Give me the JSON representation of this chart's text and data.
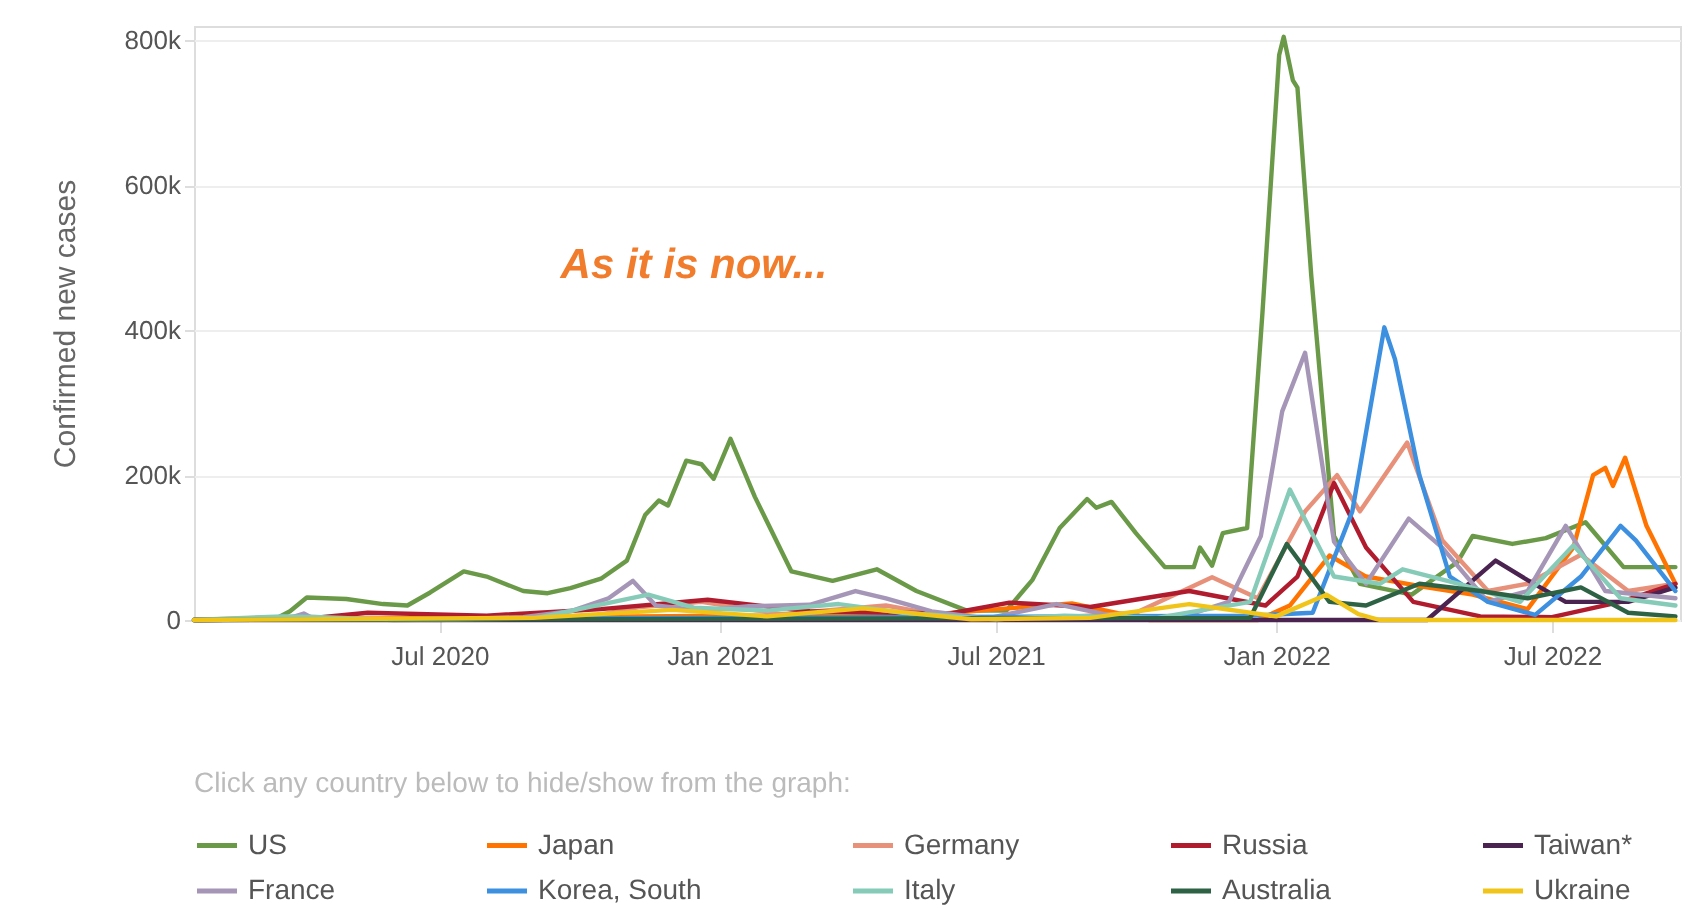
{
  "chart_data": {
    "type": "line",
    "ylabel": "Confirmed new cases",
    "legend_title": "Click any country below to hide/show from the graph:",
    "annotations": [
      "As it is now..."
    ],
    "xlim": [
      "2020-01-22",
      "2022-09-23"
    ],
    "xticks": [
      {
        "value": "2020-07-01",
        "label": "Jul 2020"
      },
      {
        "value": "2021-01-01",
        "label": "Jan 2021"
      },
      {
        "value": "2021-07-01",
        "label": "Jul 2021"
      },
      {
        "value": "2022-01-01",
        "label": "Jan 2022"
      },
      {
        "value": "2022-07-01",
        "label": "Jul 2022"
      }
    ],
    "ylim": [
      0,
      820000
    ],
    "yticks": [
      0,
      {
        "value": 200000,
        "label": "200k"
      },
      {
        "value": 400000,
        "label": "400k"
      },
      {
        "value": 600000,
        "label": "600k"
      },
      {
        "value": 800000,
        "label": "800k"
      }
    ],
    "grid": "y",
    "legend": "bottom",
    "series": [
      {
        "name": "US",
        "color": "#6a9a48",
        "x": [
          "2020-01-22",
          "2020-03-15",
          "2020-03-25",
          "2020-04-05",
          "2020-05-01",
          "2020-05-25",
          "2020-06-10",
          "2020-06-25",
          "2020-07-17",
          "2020-08-01",
          "2020-08-25",
          "2020-09-10",
          "2020-09-25",
          "2020-10-15",
          "2020-11-01",
          "2020-11-13",
          "2020-11-22",
          "2020-11-28",
          "2020-12-10",
          "2020-12-20",
          "2020-12-28",
          "2021-01-08",
          "2021-01-24",
          "2021-02-17",
          "2021-03-16",
          "2021-04-14",
          "2021-05-10",
          "2021-06-12",
          "2021-07-08",
          "2021-07-25",
          "2021-08-12",
          "2021-08-30",
          "2021-09-05",
          "2021-09-15",
          "2021-10-01",
          "2021-10-20",
          "2021-11-08",
          "2021-11-12",
          "2021-11-20",
          "2021-11-27",
          "2021-12-13",
          "2021-12-23",
          "2022-01-03",
          "2022-01-06",
          "2022-01-12",
          "2022-01-15",
          "2022-01-24",
          "2022-02-08",
          "2022-02-25",
          "2022-03-31",
          "2022-04-30",
          "2022-05-10",
          "2022-06-05",
          "2022-06-27",
          "2022-07-23",
          "2022-08-17",
          "2022-09-20"
        ],
        "values": [
          0,
          1000,
          12000,
          31000,
          29000,
          22000,
          20000,
          38000,
          67000,
          60000,
          40000,
          37000,
          44000,
          57000,
          82000,
          145000,
          165000,
          158000,
          220000,
          215000,
          195000,
          250000,
          170000,
          67000,
          54000,
          70000,
          40000,
          13000,
          13000,
          55000,
          127000,
          167000,
          155000,
          163000,
          120000,
          73000,
          73000,
          100000,
          75000,
          120000,
          127000,
          423000,
          780000,
          805000,
          745000,
          735000,
          477000,
          116000,
          50000,
          35000,
          80000,
          116000,
          105000,
          113000,
          135000,
          73000,
          73000
        ]
      },
      {
        "name": "Japan",
        "color": "#ff7300",
        "x": [
          "2020-01-22",
          "2021-01-10",
          "2021-05-10",
          "2021-08-20",
          "2021-10-10",
          "2021-12-20",
          "2022-01-10",
          "2022-02-05",
          "2022-03-01",
          "2022-04-10",
          "2022-05-10",
          "2022-06-15",
          "2022-07-15",
          "2022-07-28",
          "2022-08-05",
          "2022-08-10",
          "2022-08-18",
          "2022-09-01",
          "2022-09-20"
        ],
        "values": [
          0,
          6000,
          6000,
          23000,
          0,
          0,
          20000,
          89000,
          60000,
          45000,
          35000,
          15000,
          100000,
          200000,
          210000,
          185000,
          224000,
          130000,
          50000
        ]
      },
      {
        "name": "Germany",
        "color": "#e8917a",
        "x": [
          "2020-01-22",
          "2020-04-01",
          "2020-06-01",
          "2020-10-01",
          "2020-11-10",
          "2020-12-20",
          "2021-02-10",
          "2021-04-20",
          "2021-06-01",
          "2021-08-01",
          "2021-10-01",
          "2021-11-20",
          "2021-12-20",
          "2022-01-20",
          "2022-02-10",
          "2022-02-25",
          "2022-03-28",
          "2022-04-20",
          "2022-05-20",
          "2022-06-15",
          "2022-07-20",
          "2022-08-20",
          "2022-09-20"
        ],
        "values": [
          0,
          5000,
          0,
          2000,
          18000,
          25000,
          8000,
          20000,
          4000,
          2000,
          10000,
          59000,
          30000,
          150000,
          200000,
          150000,
          245000,
          110000,
          40000,
          50000,
          90000,
          40000,
          50000
        ]
      },
      {
        "name": "Russia",
        "color": "#b01c2e",
        "x": [
          "2020-01-22",
          "2020-04-01",
          "2020-05-15",
          "2020-08-01",
          "2020-10-15",
          "2020-12-24",
          "2021-03-01",
          "2021-06-01",
          "2021-07-10",
          "2021-09-01",
          "2021-11-05",
          "2021-12-25",
          "2022-01-15",
          "2022-02-08",
          "2022-03-01",
          "2022-04-01",
          "2022-05-15",
          "2022-07-01",
          "2022-08-15",
          "2022-09-20"
        ],
        "values": [
          0,
          1000,
          10000,
          6000,
          15000,
          28000,
          12000,
          9000,
          24000,
          18000,
          40000,
          20000,
          60000,
          189000,
          100000,
          25000,
          5000,
          4000,
          25000,
          50000
        ]
      },
      {
        "name": "Taiwan*",
        "color": "#4b2350",
        "x": [
          "2020-01-22",
          "2022-04-10",
          "2022-05-25",
          "2022-06-15",
          "2022-07-10",
          "2022-08-20",
          "2022-09-20"
        ],
        "values": [
          0,
          0,
          82000,
          55000,
          25000,
          25000,
          45000
        ]
      },
      {
        "name": "France",
        "color": "#a596b8",
        "x": [
          "2020-01-22",
          "2020-03-25",
          "2020-04-03",
          "2020-04-10",
          "2020-07-01",
          "2020-08-25",
          "2020-09-25",
          "2020-10-20",
          "2020-11-05",
          "2020-11-20",
          "2020-12-20",
          "2021-01-20",
          "2021-03-01",
          "2021-03-31",
          "2021-04-20",
          "2021-05-20",
          "2021-06-25",
          "2021-08-10",
          "2021-09-15",
          "2021-11-01",
          "2021-12-01",
          "2021-12-22",
          "2022-01-05",
          "2022-01-20",
          "2022-02-08",
          "2022-03-01",
          "2022-03-29",
          "2022-04-20",
          "2022-05-20",
          "2022-06-15",
          "2022-07-10",
          "2022-08-05",
          "2022-09-20"
        ],
        "values": [
          0,
          3000,
          9000,
          1000,
          0,
          4000,
          12000,
          30000,
          54000,
          20000,
          13000,
          19000,
          21000,
          40000,
          30000,
          12000,
          2000,
          22000,
          6000,
          5000,
          25000,
          116000,
          288000,
          369000,
          108000,
          50000,
          140000,
          100000,
          25000,
          40000,
          130000,
          40000,
          30000
        ]
      },
      {
        "name": "Korea, South",
        "color": "#3d8fe0",
        "x": [
          "2020-01-22",
          "2021-12-15",
          "2022-01-25",
          "2022-02-20",
          "2022-03-13",
          "2022-03-20",
          "2022-04-05",
          "2022-04-25",
          "2022-05-20",
          "2022-06-20",
          "2022-07-20",
          "2022-08-15",
          "2022-08-25",
          "2022-09-20"
        ],
        "values": [
          0,
          6000,
          10000,
          150000,
          404000,
          360000,
          200000,
          60000,
          25000,
          7000,
          60000,
          130000,
          110000,
          40000
        ]
      },
      {
        "name": "Italy",
        "color": "#86cbb8",
        "x": [
          "2020-01-22",
          "2020-03-20",
          "2020-04-15",
          "2020-06-01",
          "2020-09-01",
          "2020-11-15",
          "2020-12-15",
          "2021-02-01",
          "2021-03-20",
          "2021-05-01",
          "2021-07-01",
          "2021-08-15",
          "2021-10-15",
          "2021-12-15",
          "2022-01-10",
          "2022-02-08",
          "2022-03-10",
          "2022-03-25",
          "2022-05-01",
          "2022-06-10",
          "2022-07-15",
          "2022-08-15",
          "2022-09-20"
        ],
        "values": [
          0,
          5000,
          4000,
          0,
          2000,
          35000,
          17000,
          13000,
          22000,
          10000,
          1000,
          6000,
          3000,
          25000,
          180000,
          60000,
          50000,
          70000,
          50000,
          25000,
          103000,
          30000,
          20000
        ]
      },
      {
        "name": "Australia",
        "color": "#2d6344",
        "x": [
          "2020-01-22",
          "2021-12-15",
          "2022-01-08",
          "2022-02-05",
          "2022-03-01",
          "2022-04-05",
          "2022-05-15",
          "2022-06-15",
          "2022-07-20",
          "2022-08-20",
          "2022-09-20"
        ],
        "values": [
          0,
          3000,
          105000,
          25000,
          20000,
          50000,
          40000,
          30000,
          45000,
          10000,
          5000
        ]
      },
      {
        "name": "Ukraine",
        "color": "#f0c419",
        "x": [
          "2020-01-22",
          "2020-09-01",
          "2020-12-01",
          "2021-02-01",
          "2021-04-05",
          "2021-06-15",
          "2021-09-01",
          "2021-11-05",
          "2022-01-01",
          "2022-02-03",
          "2022-02-24",
          "2022-03-10",
          "2022-09-20"
        ],
        "values": [
          0,
          3000,
          14000,
          5000,
          16000,
          1000,
          3000,
          22000,
          5000,
          35000,
          8000,
          0,
          0
        ]
      }
    ]
  }
}
